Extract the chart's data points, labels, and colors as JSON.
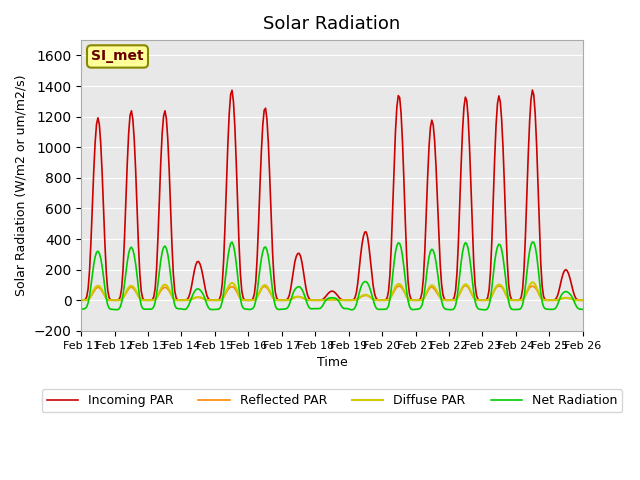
{
  "title": "Solar Radiation",
  "xlabel": "Time",
  "ylabel": "Solar Radiation (W/m2 or um/m2/s)",
  "ylim": [
    -200,
    1700
  ],
  "yticks": [
    -200,
    0,
    200,
    400,
    600,
    800,
    1000,
    1200,
    1400,
    1600
  ],
  "background_color": "#e8e8e8",
  "annotation_text": "SI_met",
  "legend_labels": [
    "Incoming PAR",
    "Reflected PAR",
    "Diffuse PAR",
    "Net Radiation"
  ],
  "line_colors": [
    "#cc0000",
    "#ff8800",
    "#cccc00",
    "#00cc00"
  ],
  "days": [
    "Feb 11",
    "Feb 12",
    "Feb 13",
    "Feb 14",
    "Feb 15",
    "Feb 16",
    "Feb 17",
    "Feb 18",
    "Feb 19",
    "Feb 20",
    "Feb 21",
    "Feb 22",
    "Feb 23",
    "Feb 24",
    "Feb 25",
    "Feb 26"
  ]
}
